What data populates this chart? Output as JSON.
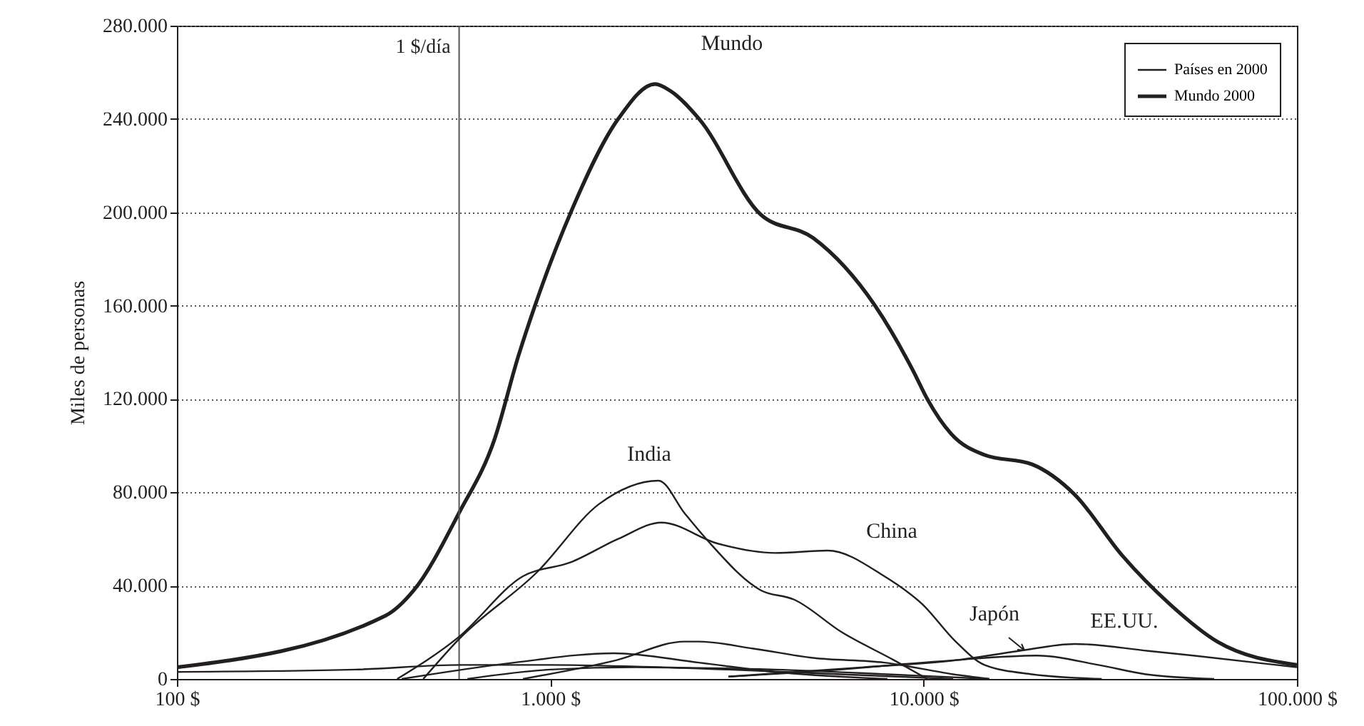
{
  "chart_data": {
    "type": "line",
    "ylabel": "Miles de personas",
    "log": "x",
    "grid": "y",
    "legend": "top right",
    "marker": "none",
    "line_style": "solid",
    "xlim": [
      100,
      100000
    ],
    "xticks": [
      {
        "value": 100,
        "label": "100 $"
      },
      {
        "value": 1000,
        "label": "1.000 $"
      },
      {
        "value": 10000,
        "label": "10.000 $"
      },
      {
        "value": 100000,
        "label": "100.000 $"
      }
    ],
    "ylim": [
      0,
      280000
    ],
    "yticks": [
      {
        "value": 0,
        "label": "0"
      },
      {
        "value": 40000,
        "label": "40.000"
      },
      {
        "value": 80000,
        "label": "80.000"
      },
      {
        "value": 120000,
        "label": "120.000"
      },
      {
        "value": 160000,
        "label": "160.000"
      },
      {
        "value": 200000,
        "label": "200.000"
      },
      {
        "value": 240000,
        "label": "240.000"
      },
      {
        "value": 280000,
        "label": "280.000"
      }
    ],
    "ref_lines": [
      {
        "axis": "x",
        "value": 570,
        "label": "1 $/día",
        "color": "#555555"
      }
    ],
    "annotations": [
      "Mundo",
      "India",
      "China",
      "Japón",
      "EE.UU."
    ],
    "series": [
      {
        "name": "Mundo 2000",
        "color": "#231f20",
        "x": [
          100,
          361,
          431,
          569,
          710,
          820,
          910,
          1135,
          1520,
          1910,
          2100,
          2505,
          3665,
          5060,
          7410,
          9380,
          10230,
          11860,
          14560,
          19500,
          25400,
          34000,
          45700,
          61200,
          100000
        ],
        "values": [
          5000,
          27000,
          38000,
          71000,
          103000,
          138000,
          160000,
          200000,
          240000,
          255000,
          252000,
          240000,
          199000,
          189000,
          160000,
          132000,
          120000,
          105000,
          96000,
          92000,
          79000,
          53000,
          32000,
          16000,
          6000
        ]
      },
      {
        "name": "Países en 2000",
        "color": "#231f20",
        "x": [
          457,
          569,
          925,
          1352,
          1950,
          2290,
          2650,
          3665,
          4500,
          6040,
          8340,
          10230
        ],
        "values": [
          0,
          17000,
          46000,
          75000,
          85000,
          71000,
          59000,
          38000,
          34000,
          20000,
          8000,
          0
        ]
      },
      {
        "color": "#231f20",
        "x": [
          389,
          569,
          845,
          1135,
          1520,
          1983,
          2810,
          4000,
          5530,
          7850,
          9930,
          12190,
          14560,
          19500,
          30000
        ],
        "values": [
          0,
          18000,
          44000,
          50000,
          60000,
          67000,
          58000,
          54000,
          55000,
          44000,
          32000,
          16000,
          6000,
          2000,
          0
        ]
      },
      {
        "color": "#231f20",
        "x": [
          3000,
          6000,
          8340,
          12000,
          20100,
          29400,
          39400,
          60000
        ],
        "values": [
          1000,
          4000,
          6000,
          8000,
          10000,
          6000,
          2000,
          0
        ]
      },
      {
        "color": "#231f20",
        "x": [
          3000,
          6900,
          12190,
          18000,
          25400,
          40000,
          52800,
          100000
        ],
        "values": [
          1000,
          5000,
          8000,
          12000,
          15000,
          12000,
          10000,
          5000
        ]
      },
      {
        "color": "#231f20",
        "x": [
          845,
          1500,
          2290,
          2500,
          3500,
          5060,
          7850,
          12000,
          15000
        ],
        "values": [
          0,
          8000,
          16000,
          16000,
          13000,
          9000,
          7000,
          2000,
          0
        ]
      },
      {
        "color": "#231f20",
        "x": [
          100,
          300,
          575,
          1000,
          2000,
          4000,
          8000,
          15000
        ],
        "values": [
          3000,
          4000,
          6000,
          6000,
          5000,
          4000,
          2000,
          0
        ]
      },
      {
        "color": "#231f20",
        "x": [
          400,
          800,
          1480,
          2500,
          4000,
          8000
        ],
        "values": [
          0,
          7000,
          11000,
          7000,
          3000,
          0
        ]
      },
      {
        "color": "#231f20",
        "x": [
          600,
          1000,
          1700,
          3000,
          6000,
          12000
        ],
        "values": [
          0,
          4000,
          5000,
          4000,
          2000,
          0
        ]
      }
    ]
  }
}
